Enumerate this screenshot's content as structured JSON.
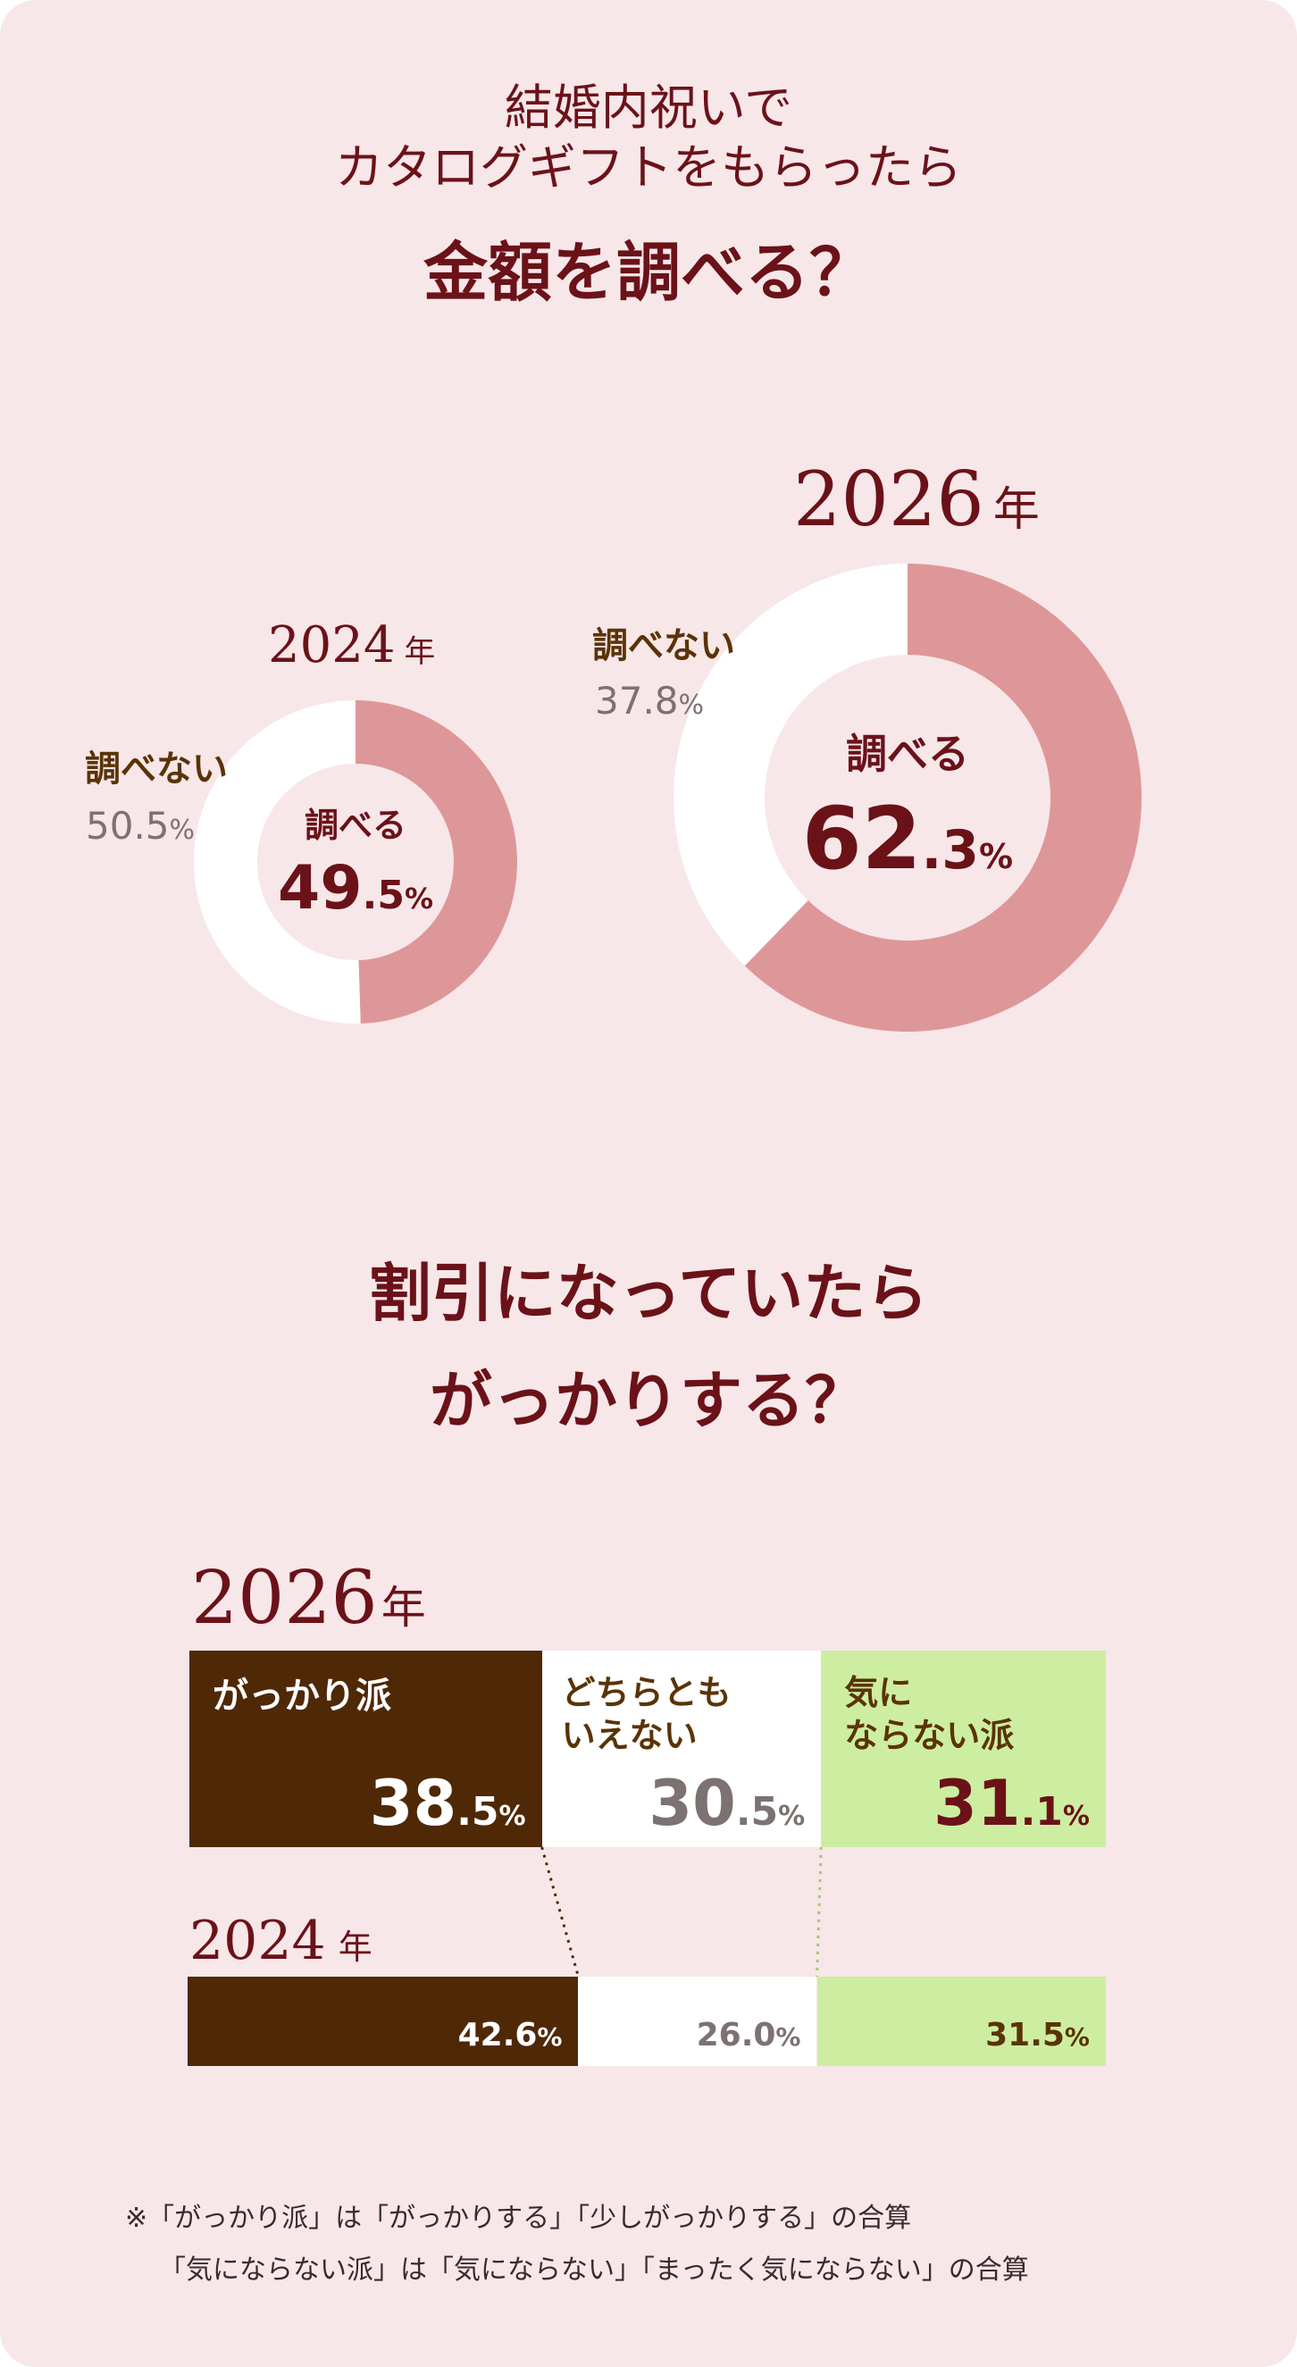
{
  "title": {
    "line1": "結婚内祝いで",
    "line2": "カタログギフトをもらったら",
    "line3": "金額を調べる？"
  },
  "section2": {
    "line1": "割引になっていたら",
    "line2": "がっかりする？"
  },
  "chart_data": [
    {
      "type": "pie",
      "title": "2024年",
      "series": [
        {
          "name": "調べる",
          "value": 49.5
        },
        {
          "name": "調べない",
          "value": 50.5
        }
      ]
    },
    {
      "type": "pie",
      "title": "2026年",
      "series": [
        {
          "name": "調べる",
          "value": 62.3
        },
        {
          "name": "調べない",
          "value": 37.8
        }
      ]
    },
    {
      "type": "bar",
      "stacked": true,
      "horizontal": true,
      "categories": [
        "2026年",
        "2024年"
      ],
      "series": [
        {
          "name": "がっかり派",
          "values": [
            38.5,
            42.6
          ]
        },
        {
          "name": "どちらともいえない",
          "values": [
            30.5,
            26.0
          ]
        },
        {
          "name": "気にならない派",
          "values": [
            31.1,
            31.5
          ]
        }
      ]
    }
  ],
  "donut2024": {
    "year": "2024",
    "nen": "年",
    "no_label": "調べない",
    "no_value": "50.5",
    "yes_label": "調べる",
    "yes_int": "49",
    "yes_dec": ".5",
    "pct": "%"
  },
  "donut2026": {
    "year": "2026",
    "nen": "年",
    "no_label": "調べない",
    "no_value": "37.8",
    "yes_label": "調べる",
    "yes_int": "62",
    "yes_dec": ".3",
    "pct": "%"
  },
  "bars": {
    "y2026": {
      "year": "2026",
      "nen": "年",
      "seg1_label": "がっかり派",
      "seg1_int": "38",
      "seg1_dec": ".5",
      "seg2_label1": "どちらとも",
      "seg2_label2": "いえない",
      "seg2_int": "30",
      "seg2_dec": ".5",
      "seg3_label1": "気に",
      "seg3_label2": "ならない派",
      "seg3_int": "31",
      "seg3_dec": ".1",
      "pct": "%"
    },
    "y2024": {
      "year": "2024",
      "nen": "年",
      "seg1_value": "42.6",
      "seg2_value": "26.0",
      "seg3_value": "31.5",
      "pct": "%"
    }
  },
  "note": {
    "line1": "※「がっかり派」は「がっかりする」「少しがっかりする」の合算",
    "line2": "「気にならない派」は「気にならない」「まったく気にならない」の合算"
  },
  "colors": {
    "background": "#f7e7e9",
    "donut_yes": "#de9799",
    "donut_no": "#ffffff",
    "dark_red": "#6b1219",
    "brown": "#4f2806",
    "neutral": "#ffffff",
    "green": "#cdeea0",
    "grey_text": "#7c7271"
  }
}
